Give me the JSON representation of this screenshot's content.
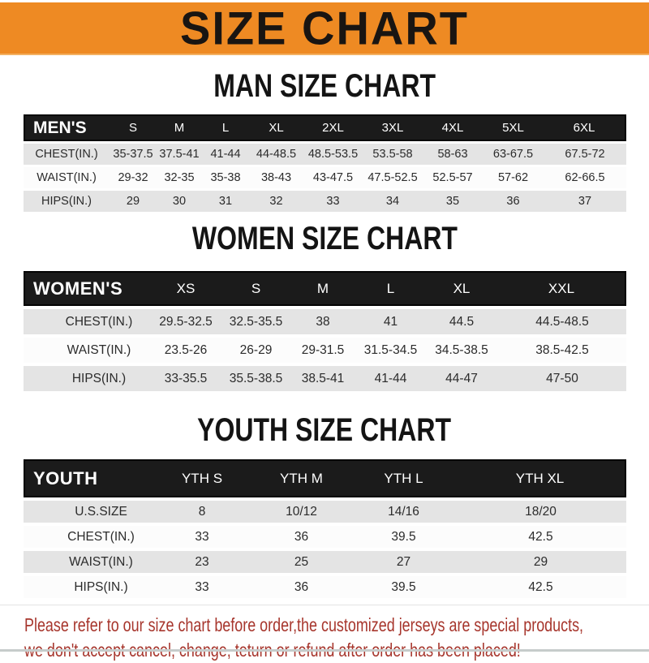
{
  "banner": {
    "title": "SIZE CHART",
    "bg_color": "#EE8A23"
  },
  "colors": {
    "banner_orange": "#EE8A23",
    "header_bar_black": "#1b1b1b",
    "row_gray": "#e4e4e4",
    "row_white": "#fcfcfc",
    "disclaimer_red": "#A7362D"
  },
  "chart_data": [
    {
      "type": "table",
      "title": "MAN SIZE CHART",
      "corner_label": "MEN'S",
      "columns": [
        "S",
        "M",
        "L",
        "XL",
        "2XL",
        "3XL",
        "4XL",
        "5XL",
        "6XL"
      ],
      "rows": [
        {
          "label": "CHEST(IN.)",
          "values": [
            "35-37.5",
            "37.5-41",
            "41-44",
            "44-48.5",
            "48.5-53.5",
            "53.5-58",
            "58-63",
            "63-67.5",
            "67.5-72"
          ]
        },
        {
          "label": "WAIST(IN.)",
          "values": [
            "29-32",
            "32-35",
            "35-38",
            "38-43",
            "43-47.5",
            "47.5-52.5",
            "52.5-57",
            "57-62",
            "62-66.5"
          ]
        },
        {
          "label": "HIPS(IN.)",
          "values": [
            "29",
            "30",
            "31",
            "32",
            "33",
            "34",
            "35",
            "36",
            "37"
          ]
        }
      ]
    },
    {
      "type": "table",
      "title": "WOMEN SIZE CHART",
      "corner_label": "WOMEN'S",
      "columns": [
        "XS",
        "S",
        "M",
        "L",
        "XL",
        "XXL"
      ],
      "rows": [
        {
          "label": "CHEST(IN.)",
          "values": [
            "29.5-32.5",
            "32.5-35.5",
            "38",
            "41",
            "44.5",
            "44.5-48.5"
          ]
        },
        {
          "label": "WAIST(IN.)",
          "values": [
            "23.5-26",
            "26-29",
            "29-31.5",
            "31.5-34.5",
            "34.5-38.5",
            "38.5-42.5"
          ]
        },
        {
          "label": "HIPS(IN.)",
          "values": [
            "33-35.5",
            "35.5-38.5",
            "38.5-41",
            "41-44",
            "44-47",
            "47-50"
          ]
        }
      ]
    },
    {
      "type": "table",
      "title": "YOUTH SIZE CHART",
      "corner_label": "YOUTH",
      "columns": [
        "YTH S",
        "YTH M",
        "YTH L",
        "YTH XL"
      ],
      "rows": [
        {
          "label": "U.S.SIZE",
          "values": [
            "8",
            "10/12",
            "14/16",
            "18/20"
          ]
        },
        {
          "label": "CHEST(IN.)",
          "values": [
            "33",
            "36",
            "39.5",
            "42.5"
          ]
        },
        {
          "label": "WAIST(IN.)",
          "values": [
            "23",
            "25",
            "27",
            "29"
          ]
        },
        {
          "label": "HIPS(IN.)",
          "values": [
            "33",
            "36",
            "39.5",
            "42.5"
          ]
        }
      ]
    }
  ],
  "disclaimer": {
    "line1": "Please refer to our size chart before order,the customized jerseys are special products,",
    "line2": "we don't accept cancel, change, teturn or refund after order has been placed!"
  }
}
